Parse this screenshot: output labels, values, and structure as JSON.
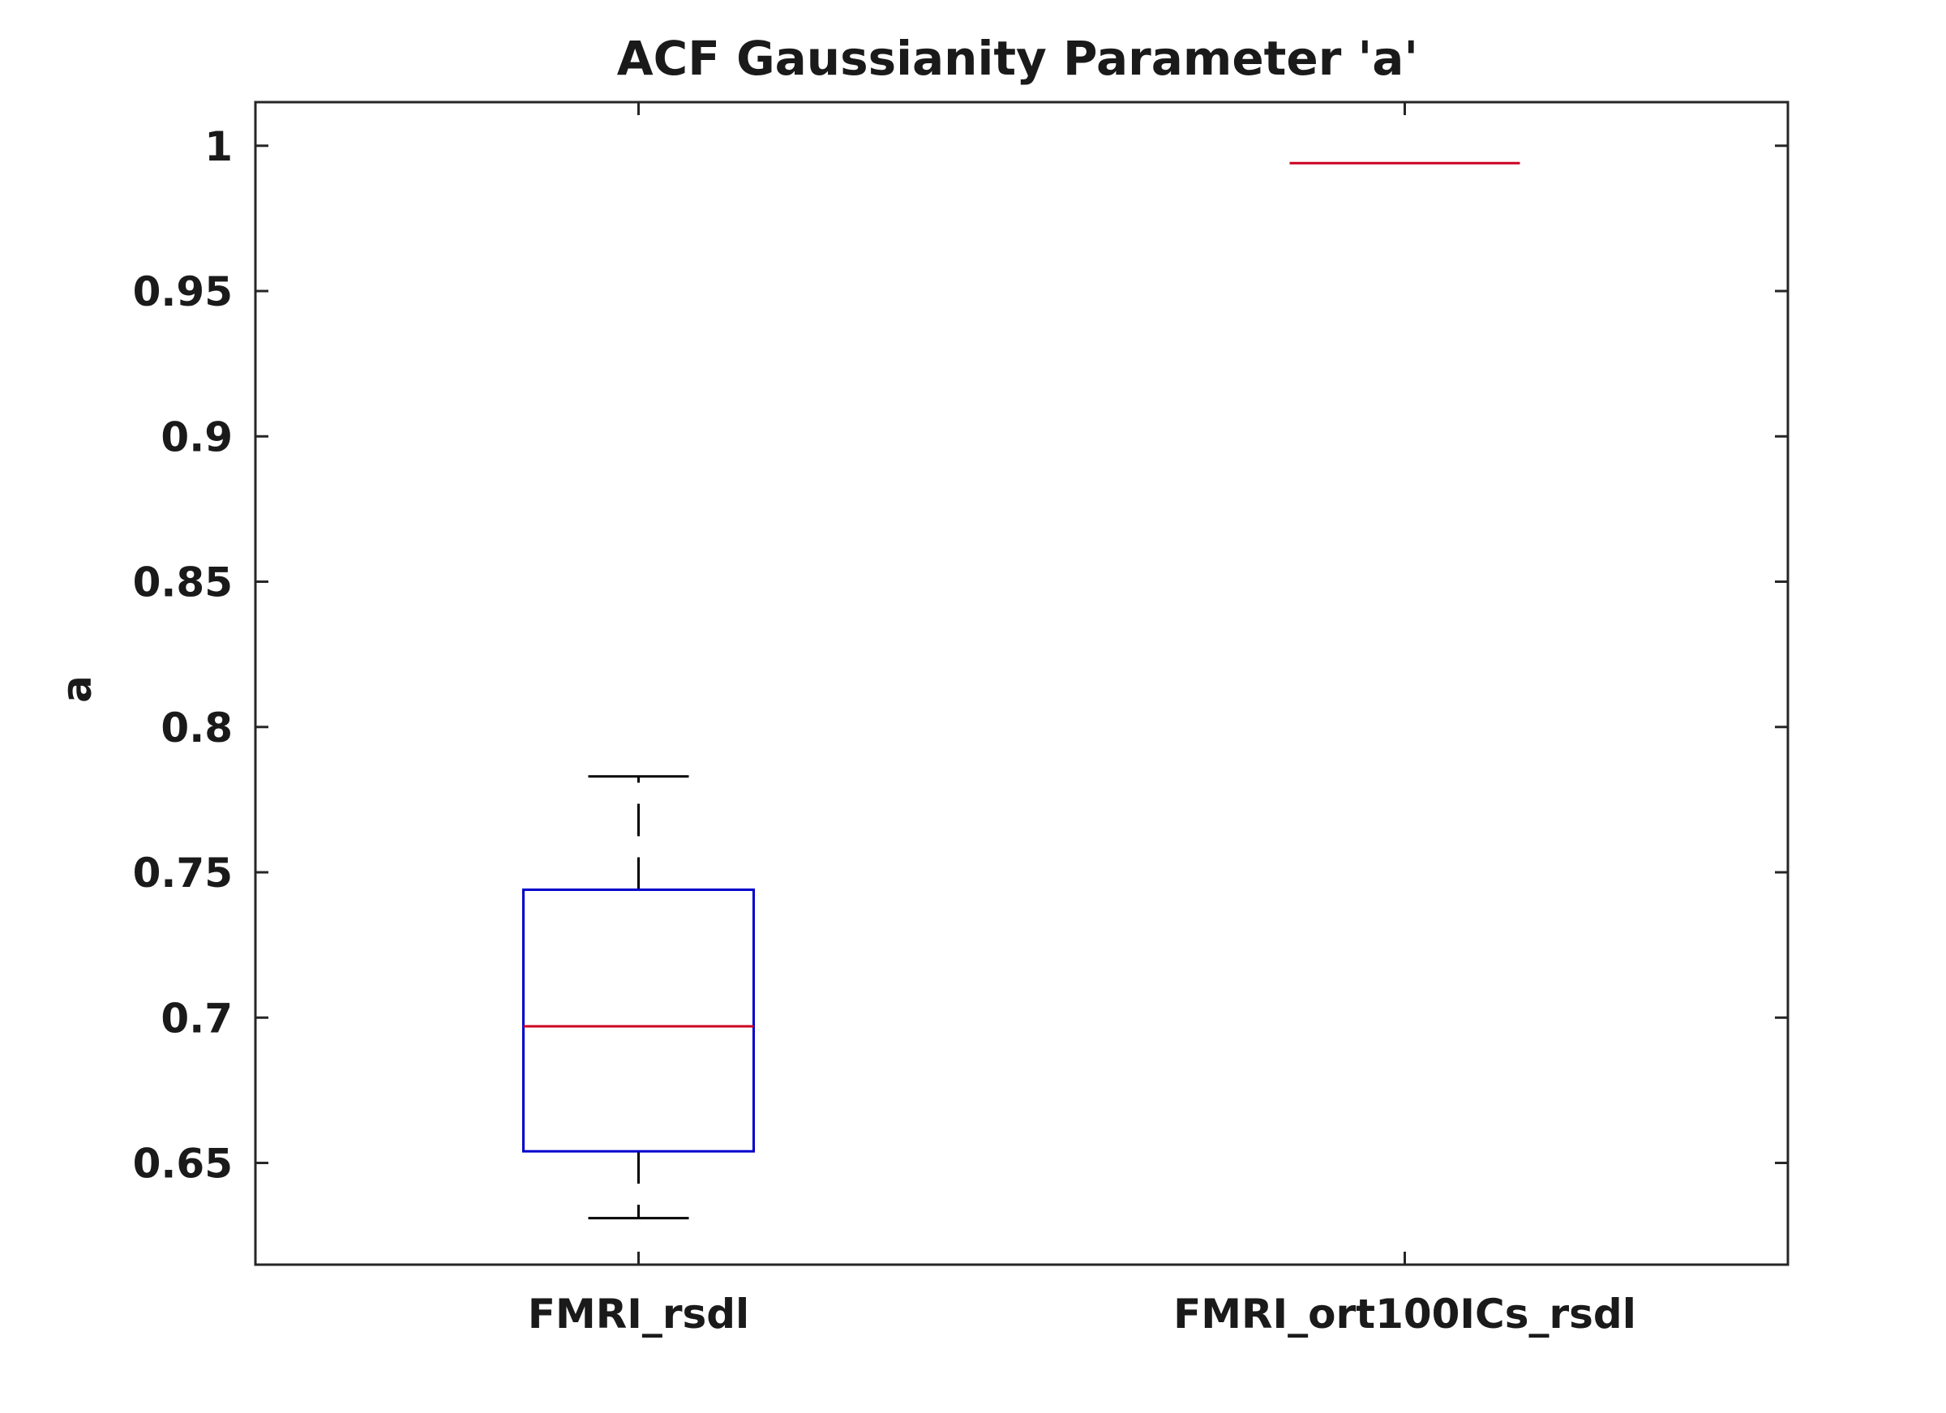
{
  "chart_data": {
    "type": "box",
    "title": "ACF Gaussianity Parameter 'a'",
    "xlabel": "",
    "ylabel": "a",
    "ylim": [
      0.615,
      1.015
    ],
    "yticks": [
      0.65,
      0.7,
      0.75,
      0.8,
      0.85,
      0.9,
      0.95,
      1
    ],
    "ytick_labels": [
      "0.65",
      "0.7",
      "0.75",
      "0.8",
      "0.85",
      "0.9",
      "0.95",
      "1"
    ],
    "categories": [
      "FMRI_rsdl",
      "FMRI_ort100ICs_rsdl"
    ],
    "boxes": [
      {
        "category": "FMRI_rsdl",
        "whisker_low": 0.631,
        "q1": 0.654,
        "median": 0.697,
        "q3": 0.744,
        "whisker_high": 0.783
      },
      {
        "category": "FMRI_ort100ICs_rsdl",
        "whisker_low": 0.994,
        "q1": 0.994,
        "median": 0.994,
        "q3": 0.994,
        "whisker_high": 0.994
      }
    ],
    "grid": false,
    "colors": {
      "box": "#0000cc",
      "median": "#cc0022",
      "whisker": "#000000",
      "axis": "#262626"
    }
  }
}
